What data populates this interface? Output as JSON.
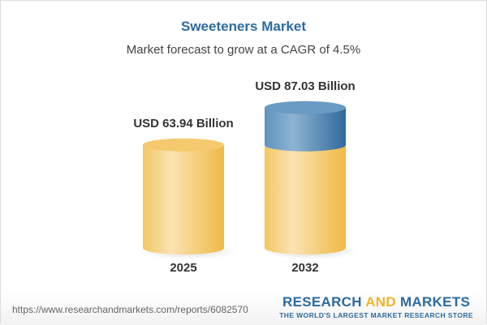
{
  "chart_data": {
    "type": "bar",
    "style": "3d-cylinder",
    "title": "Sweeteners Market",
    "subtitle": "Market forecast to grow at a CAGR of 4.5%",
    "categories": [
      "2025",
      "2032"
    ],
    "values": [
      63.94,
      87.03
    ],
    "data_labels": [
      "USD 63.94 Billion",
      "USD 87.03 Billion"
    ],
    "colors": {
      "base": "#f2c05a",
      "growth": "#4f86b5"
    }
  },
  "footer": {
    "url": "https://www.researchandmarkets.com/reports/6082570",
    "logo_part1": "RESEARCH ",
    "logo_part2": "AND",
    "logo_part3": " MARKETS",
    "tagline": "THE WORLD'S LARGEST MARKET RESEARCH STORE"
  }
}
